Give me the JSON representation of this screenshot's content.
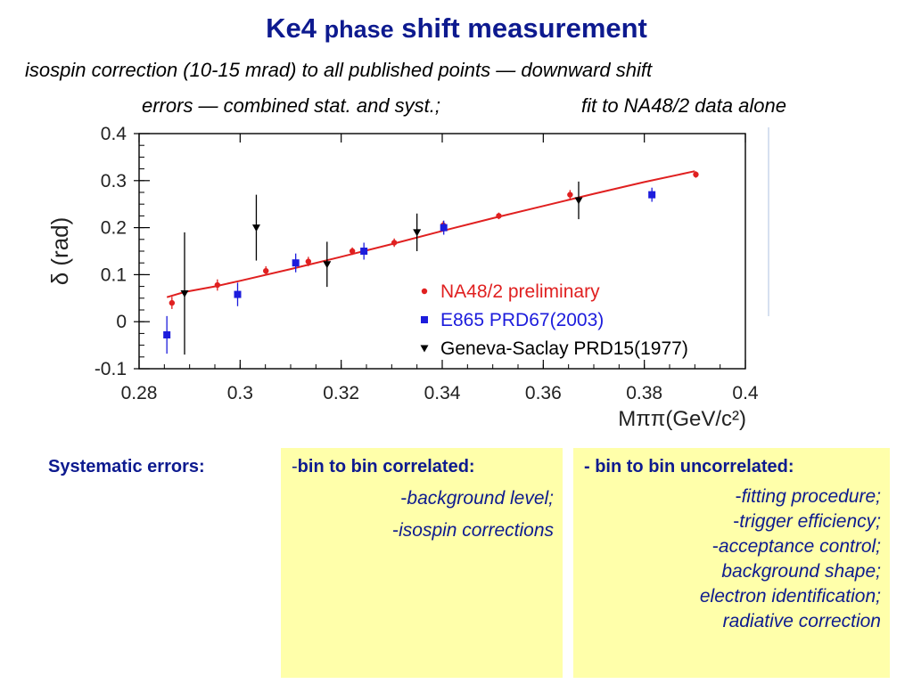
{
  "slide": {
    "title_part1": "Ke4 ",
    "title_part2": "phase",
    "title_part3": " shift measurement",
    "subtitle_line1": "isospin correction (10-15 mrad) to all published points  — downward shift",
    "subtitle_line2a": "errors — combined stat. and syst.;",
    "subtitle_line2b": "fit to NA48/2 data alone"
  },
  "systematics": {
    "label": "Systematic errors:",
    "correlated": {
      "header": "bin to bin correlated:",
      "items": [
        "background level;",
        "isospin corrections"
      ]
    },
    "uncorrelated": {
      "header": "- bin to bin uncorrelated:",
      "items": [
        "fitting procedure;",
        "trigger efficiency;",
        "acceptance control;",
        "background shape;",
        "electron identification;",
        "radiative correction"
      ]
    }
  },
  "chart_data": {
    "type": "scatter",
    "xlabel": "Mππ(GeV/c²)",
    "ylabel": "δ (rad)",
    "xlim": [
      0.28,
      0.4
    ],
    "ylim": [
      -0.1,
      0.4
    ],
    "x_ticks": [
      "0.28",
      "0.3",
      "0.32",
      "0.34",
      "0.36",
      "0.38",
      "0.4"
    ],
    "y_ticks": [
      "-0.1",
      "0",
      "0.1",
      "0.2",
      "0.3",
      "0.4"
    ],
    "legend_position": "bottom-right",
    "colors": {
      "na48": "#e02020",
      "e865": "#1c1cdc",
      "geneva": "#000000",
      "fit": "#e02020"
    },
    "series": [
      {
        "name": "NA48/2 preliminary",
        "marker": "circle",
        "x": [
          0.2865,
          0.2955,
          0.3051,
          0.3135,
          0.3222,
          0.3305,
          0.3402,
          0.3512,
          0.3653,
          0.3902
        ],
        "y": [
          0.04,
          0.078,
          0.108,
          0.128,
          0.15,
          0.168,
          0.205,
          0.225,
          0.27,
          0.313
        ],
        "err": [
          0.013,
          0.012,
          0.01,
          0.01,
          0.008,
          0.009,
          0.009,
          0.007,
          0.01,
          0.007
        ]
      },
      {
        "name": "E865 PRD67(2003)",
        "marker": "square",
        "x": [
          0.2855,
          0.2995,
          0.311,
          0.3245,
          0.3403,
          0.3815
        ],
        "y": [
          -0.028,
          0.058,
          0.125,
          0.15,
          0.2,
          0.27
        ],
        "err": [
          0.04,
          0.025,
          0.02,
          0.018,
          0.015,
          0.015
        ]
      },
      {
        "name": "Geneva-Saclay PRD15(1977)",
        "marker": "triangle-down",
        "x": [
          0.289,
          0.3032,
          0.3172,
          0.335,
          0.367
        ],
        "y": [
          0.06,
          0.2,
          0.122,
          0.19,
          0.258
        ],
        "err": [
          0.13,
          0.07,
          0.048,
          0.04,
          0.04
        ]
      }
    ],
    "fit": {
      "x": [
        0.2855,
        0.289,
        0.295,
        0.3,
        0.31,
        0.32,
        0.33,
        0.34,
        0.35,
        0.36,
        0.37,
        0.38,
        0.39
      ],
      "y": [
        0.052,
        0.063,
        0.075,
        0.087,
        0.112,
        0.138,
        0.165,
        0.193,
        0.22,
        0.246,
        0.272,
        0.297,
        0.32
      ]
    }
  }
}
